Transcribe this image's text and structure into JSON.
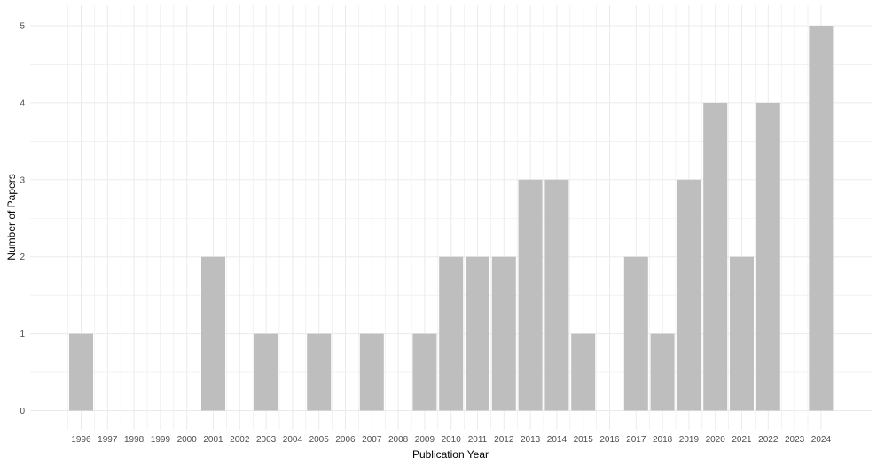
{
  "chart_data": {
    "type": "bar",
    "title": "",
    "xlabel": "Publication Year",
    "ylabel": "Number of Papers",
    "categories": [
      "1996",
      "1997",
      "1998",
      "1999",
      "2000",
      "2001",
      "2002",
      "2003",
      "2004",
      "2005",
      "2006",
      "2007",
      "2008",
      "2009",
      "2010",
      "2011",
      "2012",
      "2013",
      "2014",
      "2015",
      "2016",
      "2017",
      "2018",
      "2019",
      "2020",
      "2021",
      "2022",
      "2023",
      "2024"
    ],
    "values": [
      1,
      0,
      0,
      0,
      0,
      2,
      0,
      1,
      0,
      1,
      0,
      1,
      0,
      1,
      2,
      2,
      2,
      3,
      3,
      1,
      0,
      2,
      1,
      3,
      4,
      2,
      4,
      0,
      5
    ],
    "ylim": [
      0,
      5
    ],
    "yticks": [
      0,
      1,
      2,
      3,
      4,
      5
    ],
    "grid": true,
    "legend": "none",
    "colors": {
      "bar": "#bebebe",
      "grid": "#ebebeb",
      "background": "#ffffff"
    }
  }
}
